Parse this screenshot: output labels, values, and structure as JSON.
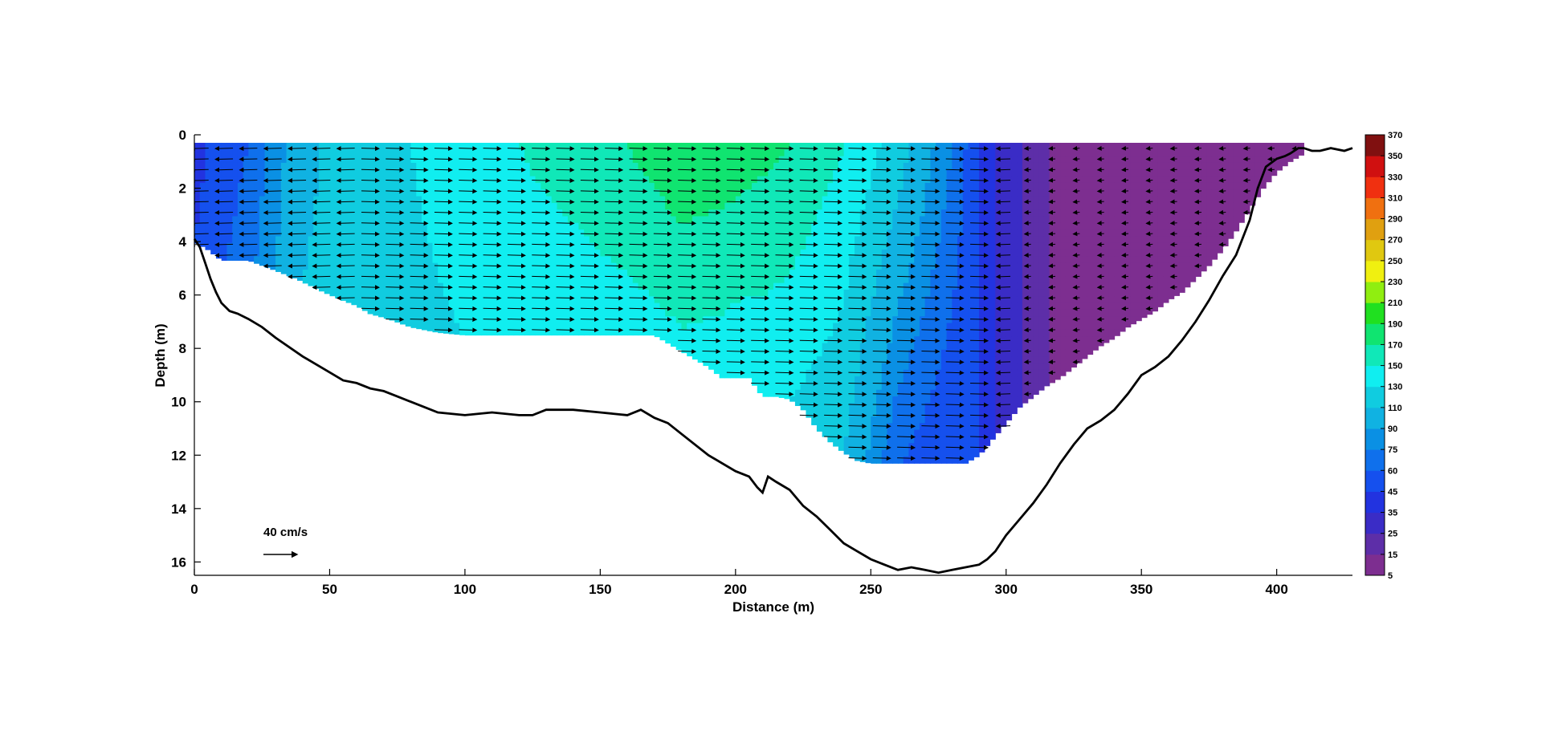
{
  "chart_data": {
    "type": "heatmap",
    "subtype": "velocity cross-section with vector overlay",
    "xlabel": "Distance (m)",
    "ylabel": "Depth (m)",
    "xlim": [
      0,
      428
    ],
    "ylim": [
      16.5,
      0
    ],
    "x_ticks": [
      0,
      50,
      100,
      150,
      200,
      250,
      300,
      350,
      400
    ],
    "y_ticks": [
      0,
      2,
      4,
      6,
      8,
      10,
      12,
      14,
      16
    ],
    "grid": false,
    "colorbar": {
      "ticks": [
        5,
        15,
        25,
        35,
        45,
        60,
        75,
        90,
        110,
        130,
        150,
        170,
        190,
        210,
        230,
        250,
        270,
        290,
        310,
        330,
        350,
        370
      ],
      "colors": [
        "#7d2e90",
        "#5d2ea8",
        "#3a2cc6",
        "#2233e0",
        "#1550ee",
        "#0f70ec",
        "#0a90e4",
        "#10b2e2",
        "#10cce0",
        "#10eef0",
        "#10e8b8",
        "#10e470",
        "#20e020",
        "#90ee10",
        "#f0f010",
        "#e0c810",
        "#e0a010",
        "#f07010",
        "#f03010",
        "#d01010",
        "#801010",
        "#100808"
      ]
    },
    "bed_profile": {
      "x": [
        0,
        2,
        4,
        6,
        8,
        10,
        13,
        16,
        20,
        25,
        30,
        40,
        50,
        55,
        60,
        65,
        70,
        75,
        80,
        90,
        100,
        110,
        120,
        125,
        130,
        135,
        140,
        150,
        160,
        165,
        170,
        175,
        180,
        190,
        200,
        205,
        208,
        210,
        212,
        215,
        220,
        225,
        230,
        235,
        240,
        245,
        250,
        255,
        260,
        265,
        270,
        275,
        280,
        285,
        290,
        293,
        296,
        300,
        305,
        310,
        315,
        320,
        325,
        330,
        335,
        340,
        345,
        350,
        355,
        360,
        365,
        370,
        375,
        380,
        385,
        390,
        393,
        396,
        400,
        403,
        405,
        408,
        410,
        413,
        416,
        420,
        425,
        428
      ],
      "depth": [
        3.9,
        4.2,
        4.8,
        5.4,
        5.9,
        6.3,
        6.6,
        6.7,
        6.9,
        7.2,
        7.6,
        8.3,
        8.9,
        9.2,
        9.3,
        9.5,
        9.6,
        9.8,
        10.0,
        10.4,
        10.5,
        10.4,
        10.5,
        10.5,
        10.3,
        10.3,
        10.3,
        10.4,
        10.5,
        10.3,
        10.6,
        10.8,
        11.2,
        12.0,
        12.6,
        12.8,
        13.2,
        13.4,
        12.8,
        13.0,
        13.3,
        13.9,
        14.3,
        14.8,
        15.3,
        15.6,
        15.9,
        16.1,
        16.3,
        16.2,
        16.3,
        16.4,
        16.3,
        16.2,
        16.1,
        15.9,
        15.6,
        15.0,
        14.4,
        13.8,
        13.1,
        12.3,
        11.6,
        11.0,
        10.7,
        10.3,
        9.7,
        9.0,
        8.7,
        8.3,
        7.7,
        7.0,
        6.2,
        5.3,
        4.5,
        3.2,
        2.0,
        1.2,
        0.9,
        0.8,
        0.7,
        0.5,
        0.5,
        0.6,
        0.6,
        0.5,
        0.6,
        0.5
      ]
    },
    "measured_bottom": {
      "x": [
        0,
        5,
        10,
        15,
        20,
        28,
        38,
        48,
        55,
        60,
        65,
        72,
        80,
        90,
        100,
        110,
        120,
        130,
        140,
        150,
        160,
        170,
        180,
        190,
        195,
        200,
        205,
        210,
        215,
        220,
        225,
        230,
        235,
        240,
        245,
        250,
        255,
        260,
        265,
        270,
        275,
        280,
        285,
        290,
        295,
        300,
        305,
        310,
        315,
        320,
        325,
        330,
        335,
        340,
        345,
        350,
        355,
        360,
        365,
        370,
        375,
        380,
        385,
        390,
        395,
        400,
        405,
        410
      ],
      "depth": [
        4.0,
        4.3,
        4.7,
        4.7,
        4.7,
        5.0,
        5.4,
        5.9,
        6.2,
        6.4,
        6.7,
        6.9,
        7.2,
        7.4,
        7.5,
        7.5,
        7.5,
        7.5,
        7.5,
        7.5,
        7.5,
        7.5,
        8.1,
        8.7,
        9.1,
        9.1,
        9.1,
        9.8,
        9.8,
        9.9,
        10.3,
        11.0,
        11.5,
        11.9,
        12.2,
        12.3,
        12.3,
        12.3,
        12.3,
        12.3,
        12.3,
        12.3,
        12.3,
        12.0,
        11.4,
        10.8,
        10.2,
        9.8,
        9.4,
        9.1,
        8.7,
        8.3,
        7.9,
        7.6,
        7.2,
        6.9,
        6.6,
        6.2,
        5.9,
        5.4,
        4.9,
        4.3,
        3.6,
        2.8,
        2.0,
        1.4,
        1.0,
        0.7
      ]
    },
    "velocity_magnitude_profile": {
      "x": [
        0,
        20,
        40,
        60,
        80,
        100,
        120,
        140,
        160,
        180,
        200,
        220,
        240,
        260,
        280,
        290,
        300,
        320,
        340,
        360,
        380,
        400,
        410
      ],
      "top_speed_cm_s": [
        40,
        60,
        105,
        120,
        130,
        140,
        150,
        160,
        170,
        185,
        180,
        170,
        150,
        120,
        75,
        45,
        30,
        10,
        8,
        6,
        6,
        6,
        6
      ],
      "bottom_speed_cm_s": [
        45,
        70,
        110,
        120,
        125,
        130,
        135,
        135,
        140,
        145,
        135,
        130,
        110,
        60,
        45,
        45,
        30,
        10,
        8,
        6,
        6,
        6,
        6
      ]
    },
    "scale_arrow": {
      "label": "40 cm/s",
      "speed_cm_s": 40
    }
  }
}
